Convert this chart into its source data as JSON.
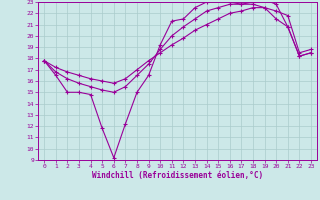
{
  "xlabel": "Windchill (Refroidissement éolien,°C)",
  "bg_color": "#cce8e8",
  "line_color": "#990099",
  "grid_color": "#aacccc",
  "xlim": [
    -0.5,
    23.5
  ],
  "ylim": [
    9,
    23
  ],
  "xticks": [
    0,
    1,
    2,
    3,
    4,
    5,
    6,
    7,
    8,
    9,
    10,
    11,
    12,
    13,
    14,
    15,
    16,
    17,
    18,
    19,
    20,
    21,
    22,
    23
  ],
  "yticks": [
    9,
    10,
    11,
    12,
    13,
    14,
    15,
    16,
    17,
    18,
    19,
    20,
    21,
    22,
    23
  ],
  "series": [
    {
      "x": [
        0,
        1,
        2,
        3,
        4,
        5,
        6,
        7,
        8,
        9,
        10,
        11,
        12,
        13,
        14,
        15,
        16,
        17,
        18,
        19,
        20,
        21,
        22,
        23
      ],
      "y": [
        17.8,
        16.5,
        15.0,
        15.0,
        14.8,
        11.8,
        9.2,
        12.2,
        15.0,
        16.5,
        19.2,
        21.3,
        21.5,
        22.5,
        23.0,
        23.2,
        23.0,
        22.8,
        23.0,
        23.2,
        22.8,
        20.8,
        18.2,
        18.5
      ]
    },
    {
      "x": [
        0,
        1,
        2,
        3,
        4,
        5,
        6,
        7,
        8,
        9,
        10,
        11,
        12,
        13,
        14,
        15,
        16,
        17,
        18,
        19,
        20,
        21,
        22,
        23
      ],
      "y": [
        17.8,
        16.8,
        16.2,
        15.8,
        15.5,
        15.2,
        15.0,
        15.5,
        16.5,
        17.5,
        18.8,
        20.0,
        20.8,
        21.5,
        22.2,
        22.5,
        22.8,
        22.8,
        22.8,
        22.5,
        21.5,
        20.8,
        18.2,
        18.5
      ]
    },
    {
      "x": [
        0,
        1,
        2,
        3,
        4,
        5,
        6,
        7,
        8,
        9,
        10,
        11,
        12,
        13,
        14,
        15,
        16,
        17,
        18,
        19,
        20,
        21,
        22,
        23
      ],
      "y": [
        17.8,
        17.2,
        16.8,
        16.5,
        16.2,
        16.0,
        15.8,
        16.2,
        17.0,
        17.8,
        18.5,
        19.2,
        19.8,
        20.5,
        21.0,
        21.5,
        22.0,
        22.2,
        22.5,
        22.5,
        22.2,
        21.8,
        18.5,
        18.8
      ]
    }
  ]
}
